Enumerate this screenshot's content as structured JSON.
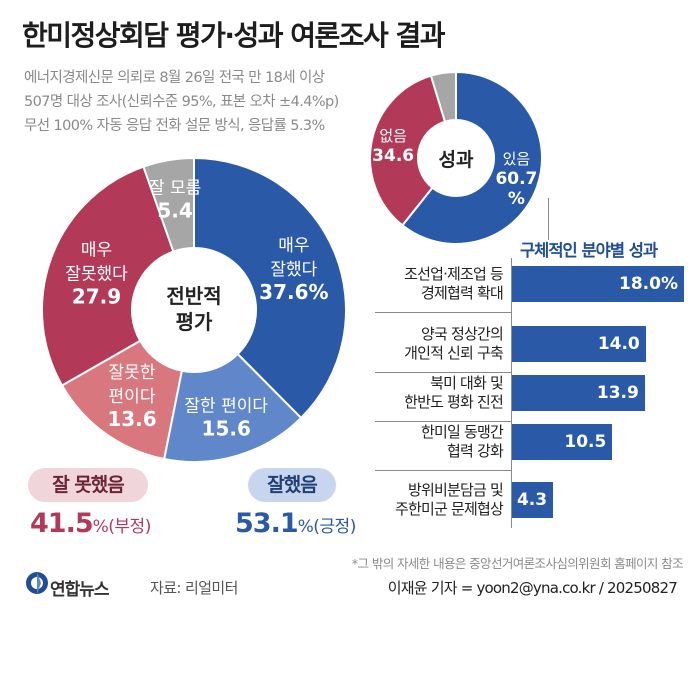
{
  "title": "한미정상회담 평가·성과 여론조사 결과",
  "subtitle_lines": [
    "에너지경제신문 의뢰로 8월 26일 전국 만 18세 이상",
    "507명 대상 조사(신뢰수준 95%, 표본 오차 ±4.4%p)",
    "무선 100% 자동 응답 전화 설문 방식, 응답률 5.3%"
  ],
  "overall": {
    "center_line1": "전반적",
    "center_line2": "평가",
    "negative_label": "잘 못했음",
    "negative_value": "41.5",
    "negative_suffix": "%(부정)",
    "positive_label": "잘했음",
    "positive_value": "53.1",
    "positive_suffix": "%(긍정)"
  },
  "results": {
    "center": "성과"
  },
  "bar_section_title": "구체적인 분야별 성과",
  "footnote": "*그 밖의 자세한 내용은 중앙선거여론조사심의위원회 홈페이지 참조",
  "agency": "연합뉴스",
  "source": "자료: 리얼미터",
  "byline": "이재윤 기자 = yoon2@yna.co.kr / 20250827",
  "colors": {
    "blue": "#2a5aa7",
    "light_blue": "#5f87c9",
    "red": "#b23a58",
    "light_red": "#d9777f",
    "gray": "#a6a6a6",
    "pink_pill": "#f0d5da",
    "blue_pill": "#c7d6ee"
  },
  "chart_data": [
    {
      "type": "pie",
      "name": "전반적 평가",
      "slices": [
        {
          "label": [
            "매우",
            "잘했다"
          ],
          "value": 37.6,
          "display": "37.6%",
          "color": "#2a5aa7"
        },
        {
          "label": [
            "잘한 편이다"
          ],
          "value": 15.6,
          "display": "15.6",
          "color": "#5f87c9"
        },
        {
          "label": [
            "잘못한",
            "편이다"
          ],
          "value": 13.6,
          "display": "13.6",
          "color": "#d9777f"
        },
        {
          "label": [
            "매우",
            "잘못했다"
          ],
          "value": 27.9,
          "display": "27.9",
          "color": "#b23a58"
        },
        {
          "label": [
            "잘 모름"
          ],
          "value": 5.4,
          "display": "5.4",
          "color": "#a6a6a6"
        }
      ]
    },
    {
      "type": "pie",
      "name": "성과",
      "slices": [
        {
          "label": [
            "있음"
          ],
          "value": 60.7,
          "display": "60.7",
          "unit": "%",
          "color": "#2a5aa7"
        },
        {
          "label": [
            "없음"
          ],
          "value": 34.6,
          "display": "34.6",
          "color": "#b23a58"
        },
        {
          "label": [],
          "value": 4.7,
          "display": "",
          "color": "#a6a6a6"
        }
      ]
    },
    {
      "type": "bar",
      "title": "구체적인 분야별 성과",
      "categories": [
        [
          "조선업·제조업 등",
          "경제협력 확대"
        ],
        [
          "양국 정상간의",
          "개인적 신뢰 구축"
        ],
        [
          "북미 대화 및",
          "한반도 평화 진전"
        ],
        [
          "한미일 동맹간",
          "협력 강화"
        ],
        [
          "방위비분담금 및",
          "주한미군 문제협상"
        ]
      ],
      "values": [
        18.0,
        14.0,
        13.9,
        10.5,
        4.3
      ],
      "display": [
        "18.0%",
        "14.0",
        "13.9",
        "10.5",
        "4.3"
      ],
      "xlim": [
        0,
        18.0
      ]
    }
  ]
}
